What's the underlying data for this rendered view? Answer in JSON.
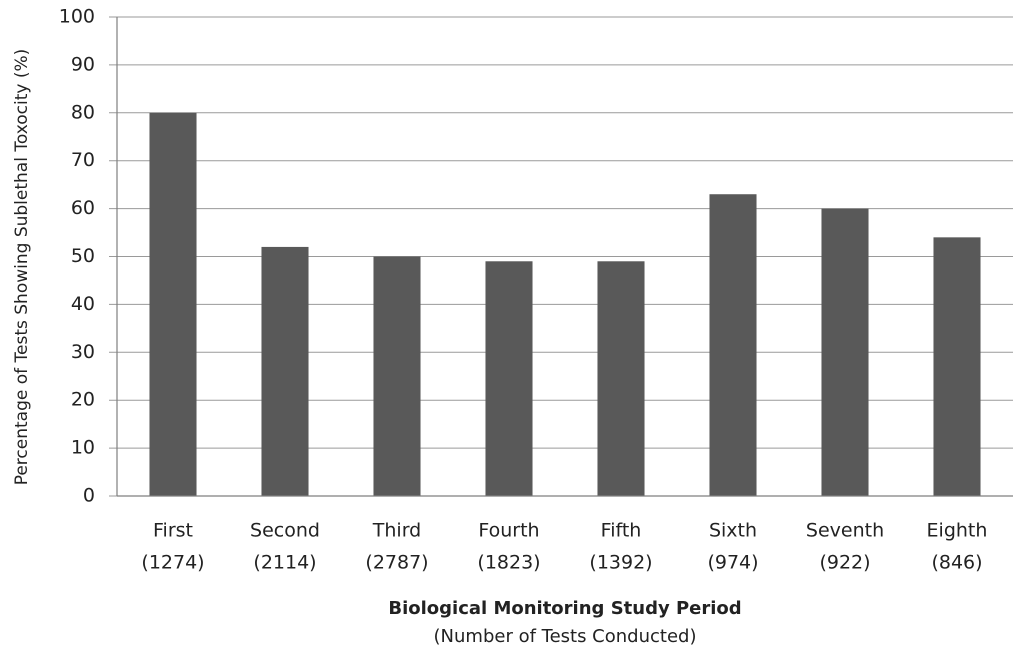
{
  "chart_data": {
    "type": "bar",
    "y_axis_label": "Percentage of Tests Showing Sublethal Toxocity (%)",
    "x_axis_label": "Biological Monitoring Study Period",
    "x_axis_sublabel": "(Number of Tests Conducted)",
    "categories": [
      [
        "First",
        "(1274)"
      ],
      [
        "Second",
        "(2114)"
      ],
      [
        "Third",
        "(2787)"
      ],
      [
        "Fourth",
        "(1823)"
      ],
      [
        "Fifth",
        "(1392)"
      ],
      [
        "Sixth",
        "(974)"
      ],
      [
        "Seventh",
        "(922)"
      ],
      [
        "Eighth",
        "(846)"
      ]
    ],
    "values": [
      80,
      52,
      50,
      49,
      49,
      63,
      60,
      54
    ],
    "color": "#595959",
    "ylim": [
      0,
      100
    ],
    "yticks": [
      0,
      10,
      20,
      30,
      40,
      50,
      60,
      70,
      80,
      90,
      100
    ],
    "grid": true
  }
}
